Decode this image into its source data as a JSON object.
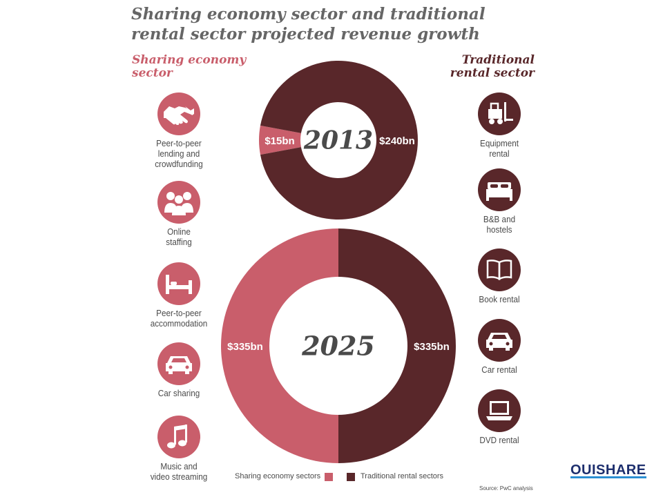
{
  "title_line1": "Sharing economy sector and traditional",
  "title_line2": "rental sector projected revenue growth",
  "left_heading_line1": "Sharing economy",
  "left_heading_line2": "sector",
  "right_heading_line1": "Traditional",
  "right_heading_line2": "rental sector",
  "sharing_items": [
    {
      "label_lines": [
        "Peer-to-peer",
        "lending and",
        "crowdfunding"
      ],
      "icon": "handshake-icon"
    },
    {
      "label_lines": [
        "Online",
        "staffing"
      ],
      "icon": "people-icon"
    },
    {
      "label_lines": [
        "Peer-to-peer",
        "accommodation"
      ],
      "icon": "bed-icon"
    },
    {
      "label_lines": [
        "Car sharing"
      ],
      "icon": "car-icon"
    },
    {
      "label_lines": [
        "Music and",
        "video streaming"
      ],
      "icon": "music-note-icon"
    }
  ],
  "traditional_items": [
    {
      "label_lines": [
        "Equipment",
        "rental"
      ],
      "icon": "forklift-icon"
    },
    {
      "label_lines": [
        "B&B and",
        "hostels"
      ],
      "icon": "bed-icon"
    },
    {
      "label_lines": [
        "Book rental"
      ],
      "icon": "book-icon"
    },
    {
      "label_lines": [
        "Car rental"
      ],
      "icon": "car-icon"
    },
    {
      "label_lines": [
        "DVD rental"
      ],
      "icon": "laptop-icon"
    }
  ],
  "colors": {
    "sharing": "#c95e6b",
    "traditional": "#59272a",
    "title": "#666666",
    "text": "#4a4a4a"
  },
  "chart_data": [
    {
      "type": "pie",
      "center_label": "2013",
      "categories": [
        "Sharing economy sectors",
        "Traditional rental sectors"
      ],
      "values": [
        15,
        240
      ],
      "value_labels": [
        "$15bn",
        "$240bn"
      ],
      "unit": "bn USD"
    },
    {
      "type": "pie",
      "center_label": "2025",
      "categories": [
        "Sharing economy sectors",
        "Traditional rental sectors"
      ],
      "values": [
        335,
        335
      ],
      "value_labels": [
        "$335bn",
        "$335bn"
      ],
      "unit": "bn USD"
    }
  ],
  "legend": {
    "sharing": "Sharing economy sectors",
    "traditional": "Traditional rental sectors"
  },
  "source": "Source: PwC analysis",
  "logo_text": "OUISHARE"
}
